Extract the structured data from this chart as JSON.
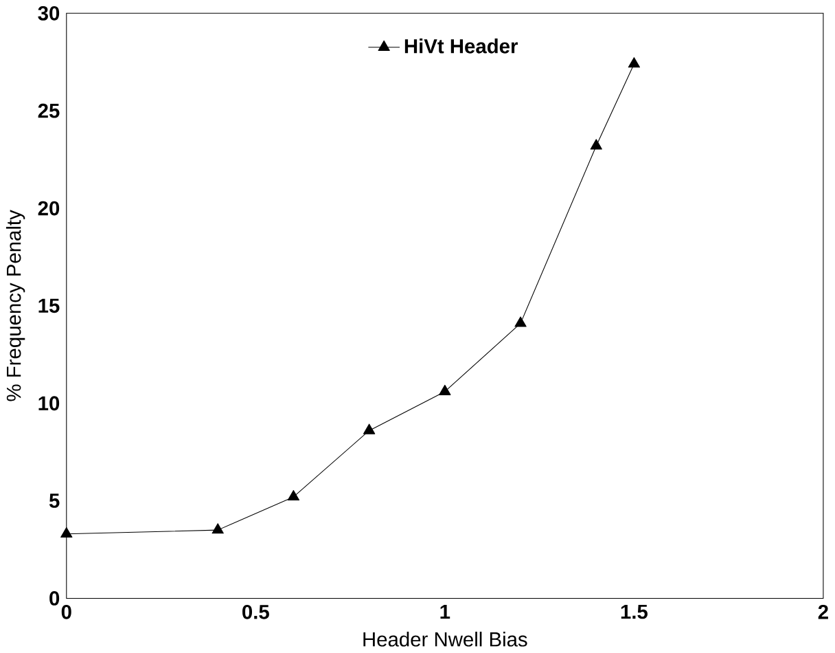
{
  "chart_data": {
    "type": "line",
    "xlabel": "Header Nwell Bias",
    "ylabel": "% Frequency Penalty",
    "x": [
      0,
      0.4,
      0.6,
      0.8,
      1.0,
      1.2,
      1.4,
      1.5
    ],
    "series": [
      {
        "name": "HiVt Header",
        "color": "#000000",
        "values": [
          3.3,
          3.5,
          5.2,
          8.6,
          10.6,
          14.1,
          23.2,
          27.4
        ]
      }
    ],
    "xlim": [
      0,
      2
    ],
    "xticks": [
      0,
      0.5,
      1,
      1.5,
      2
    ],
    "ylim": [
      0,
      30
    ],
    "yticks": [
      0,
      5,
      10,
      15,
      20,
      25,
      30
    ],
    "marker": "triangle",
    "line_style": "solid",
    "legend": "top",
    "grid": false
  }
}
